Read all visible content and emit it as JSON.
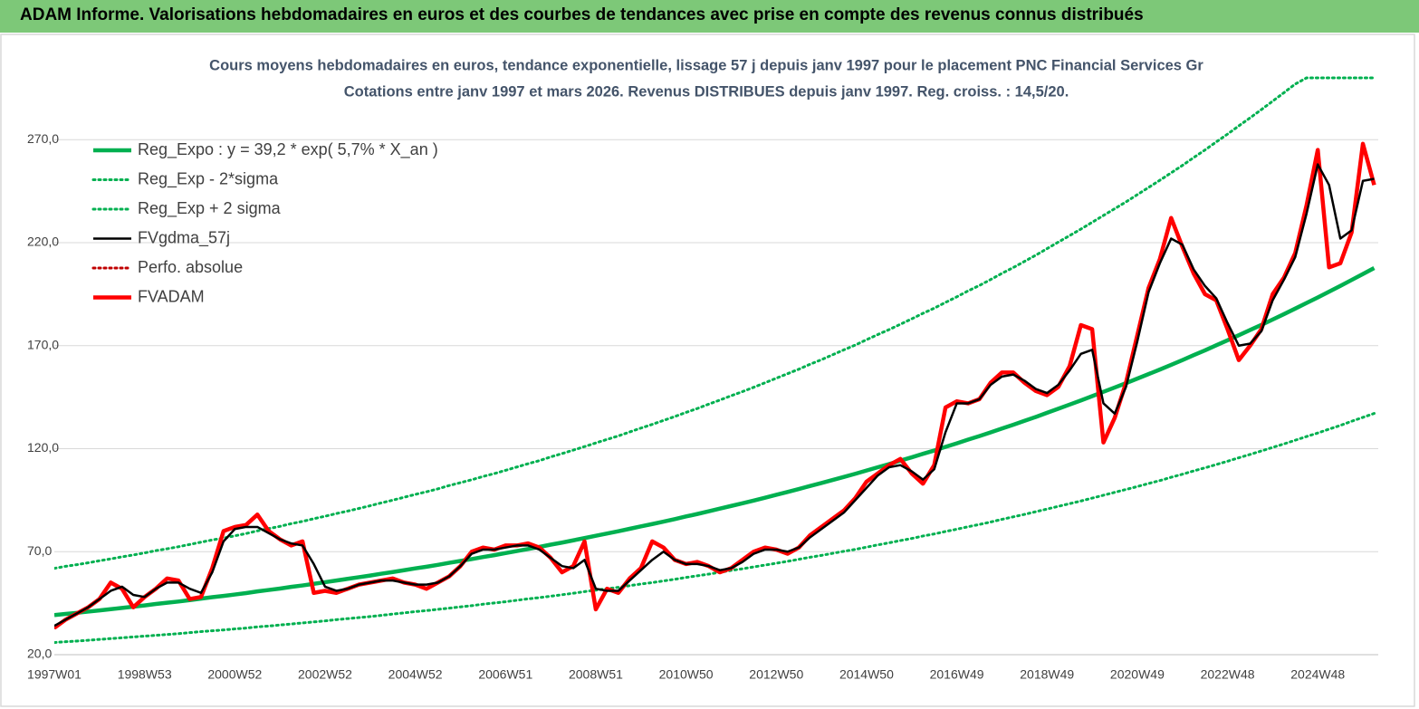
{
  "header": {
    "title": "ADAM Informe. Valorisations hebdomadaires en euros et des courbes de tendances avec prise en compte des revenus connus distribués"
  },
  "chart_data": {
    "type": "line",
    "title": "Cours moyens hebdomadaires en euros, tendance exponentielle, lissage 57 j depuis janv 1997 pour le placement PNC Financial Services Gr",
    "subtitle": "Cotations entre janv 1997 et mars 2026. Revenus DISTRIBUES depuis janv 1997. Reg. croiss. : 14,5/20.",
    "categories": [
      "1997W01",
      null,
      null,
      null,
      null,
      null,
      null,
      null,
      "1998W53",
      null,
      null,
      null,
      null,
      null,
      null,
      null,
      "2000W52",
      null,
      null,
      null,
      null,
      null,
      null,
      null,
      "2002W52",
      null,
      null,
      null,
      null,
      null,
      null,
      null,
      "2004W52",
      null,
      null,
      null,
      null,
      null,
      null,
      null,
      "2006W51",
      null,
      null,
      null,
      null,
      null,
      null,
      null,
      "2008W51",
      null,
      null,
      null,
      null,
      null,
      null,
      null,
      "2010W50",
      null,
      null,
      null,
      null,
      null,
      null,
      null,
      "2012W50",
      null,
      null,
      null,
      null,
      null,
      null,
      null,
      "2014W50",
      null,
      null,
      null,
      null,
      null,
      null,
      null,
      "2016W49",
      null,
      null,
      null,
      null,
      null,
      null,
      null,
      "2018W49",
      null,
      null,
      null,
      null,
      null,
      null,
      null,
      "2020W49",
      null,
      null,
      null,
      null,
      null,
      null,
      null,
      "2022W48",
      null,
      null,
      null,
      null,
      null,
      null,
      null,
      "2024W48",
      null,
      null,
      null,
      null,
      null
    ],
    "ylim": [
      20,
      300
    ],
    "yticks": [
      {
        "value": 20,
        "label": "20,0"
      },
      {
        "value": 70,
        "label": "70,0"
      },
      {
        "value": 120,
        "label": "120,0"
      },
      {
        "value": 170,
        "label": "170,0"
      },
      {
        "value": 220,
        "label": "220,0"
      },
      {
        "value": 270,
        "label": "270,0"
      }
    ],
    "grid": true,
    "legend": "top-left",
    "series": [
      {
        "name": "Reg_Expo : y = 39,2 * exp( 5,7% *  X_an )",
        "color": "#00b050",
        "style": "thick",
        "values": [
          39.2,
          39.8,
          40.3,
          40.9,
          41.5,
          42.1,
          42.7,
          43.3,
          43.9,
          44.6,
          45.2,
          45.8,
          46.5,
          47.2,
          47.9,
          48.5,
          49.2,
          49.9,
          50.7,
          51.4,
          52.1,
          52.9,
          53.6,
          54.4,
          55.2,
          56.0,
          56.8,
          57.6,
          58.4,
          59.3,
          60.1,
          61.0,
          61.9,
          62.7,
          63.6,
          64.6,
          65.5,
          66.4,
          67.4,
          68.3,
          69.3,
          70.3,
          71.3,
          72.3,
          73.4,
          74.4,
          75.5,
          76.6,
          77.7,
          78.8,
          79.9,
          81.1,
          82.3,
          83.4,
          84.6,
          85.8,
          87.1,
          88.3,
          89.6,
          90.9,
          92.2,
          93.5,
          94.8,
          96.2,
          97.6,
          99.0,
          100.4,
          101.9,
          103.3,
          104.8,
          106.3,
          107.8,
          109.4,
          111.0,
          112.5,
          114.2,
          115.8,
          117.5,
          119.1,
          120.9,
          122.6,
          124.4,
          126.1,
          127.9,
          129.8,
          131.6,
          133.5,
          135.4,
          137.4,
          139.4,
          141.4,
          143.4,
          145.5,
          147.6,
          149.7,
          151.8,
          154.0,
          156.2,
          158.4,
          160.7,
          163.0,
          165.4,
          167.7,
          170.2,
          172.6,
          175.1,
          177.6,
          180.1,
          182.7,
          185.3,
          188.0,
          190.7,
          193.4,
          196.2,
          199.0,
          201.9,
          204.8,
          207.7
        ]
      },
      {
        "name": "Reg_Exp - 2*sigma",
        "color": "#00b050",
        "style": "dotted",
        "values": [
          25.9,
          26.3,
          26.6,
          27.0,
          27.4,
          27.8,
          28.2,
          28.6,
          29.0,
          29.4,
          29.8,
          30.2,
          30.7,
          31.2,
          31.6,
          32.0,
          32.5,
          32.9,
          33.5,
          33.9,
          34.4,
          34.9,
          35.4,
          35.9,
          36.4,
          37.0,
          37.5,
          38.0,
          38.5,
          39.1,
          39.7,
          40.3,
          40.9,
          41.4,
          42.0,
          42.6,
          43.2,
          43.8,
          44.5,
          45.1,
          45.7,
          46.4,
          47.1,
          47.7,
          48.4,
          49.1,
          49.8,
          50.6,
          51.3,
          52.0,
          52.7,
          53.5,
          54.3,
          55.0,
          55.8,
          56.6,
          57.5,
          58.3,
          59.1,
          60.0,
          60.9,
          61.7,
          62.6,
          63.5,
          64.4,
          65.3,
          66.3,
          67.3,
          68.2,
          69.2,
          70.2,
          71.1,
          72.2,
          73.3,
          74.3,
          75.4,
          76.4,
          77.6,
          78.6,
          79.8,
          80.9,
          82.1,
          83.2,
          84.4,
          85.7,
          86.9,
          88.1,
          89.4,
          90.7,
          92.0,
          93.3,
          94.6,
          96.0,
          97.4,
          98.8,
          100.2,
          101.6,
          103.1,
          104.5,
          106.1,
          107.6,
          109.2,
          110.7,
          112.3,
          113.9,
          115.6,
          117.2,
          118.9,
          120.6,
          122.3,
          124.1,
          125.9,
          127.6,
          129.5,
          131.3,
          133.3,
          135.2,
          137.1
        ]
      },
      {
        "name": "Reg_Exp + 2 sigma",
        "color": "#00b050",
        "style": "dotted",
        "values": [
          61.9,
          62.9,
          63.7,
          64.6,
          65.6,
          66.5,
          67.5,
          68.4,
          69.4,
          70.5,
          71.4,
          72.4,
          73.5,
          74.6,
          75.7,
          76.6,
          77.7,
          78.8,
          80.1,
          81.2,
          82.3,
          83.6,
          84.7,
          86.0,
          87.2,
          88.5,
          89.7,
          91.0,
          92.3,
          93.7,
          95.0,
          96.4,
          97.8,
          99.1,
          100.5,
          102.1,
          103.5,
          104.9,
          106.5,
          107.9,
          109.5,
          111.1,
          112.7,
          114.2,
          116.0,
          117.6,
          119.3,
          121.0,
          122.8,
          124.5,
          126.2,
          128.1,
          130.0,
          131.8,
          133.7,
          135.6,
          137.6,
          139.5,
          141.6,
          143.6,
          145.7,
          147.7,
          149.8,
          152.0,
          154.2,
          156.4,
          158.6,
          161.0,
          163.2,
          165.6,
          168.0,
          170.3,
          172.9,
          175.4,
          177.8,
          180.4,
          183.0,
          185.7,
          188.2,
          191.0,
          193.7,
          196.6,
          199.2,
          202.1,
          205.1,
          207.9,
          210.9,
          213.9,
          217.1,
          220.3,
          223.4,
          226.6,
          229.9,
          233.2,
          236.5,
          239.8,
          243.3,
          246.8,
          250.3,
          253.9,
          257.5,
          261.3,
          265.0,
          268.9,
          272.7,
          276.7,
          280.6,
          284.6,
          288.7,
          292.8,
          297.0,
          300,
          300,
          300,
          300,
          300,
          300,
          300
        ]
      },
      {
        "name": "FVgdma_57j",
        "color": "#000000",
        "style": "solid",
        "values": [
          34,
          37,
          40,
          43,
          47,
          51,
          53,
          49,
          48,
          52,
          55,
          55,
          52,
          50,
          60,
          75,
          81,
          82,
          82,
          79,
          76,
          74,
          73,
          64,
          53,
          51,
          52,
          54,
          55,
          56,
          56,
          55,
          54,
          54,
          55,
          58,
          63,
          69,
          71,
          71,
          72,
          73,
          73,
          71,
          67,
          63,
          62,
          66,
          52,
          51,
          51,
          56,
          61,
          66,
          70,
          66,
          64,
          64,
          63,
          61,
          62,
          65,
          69,
          71,
          71,
          70,
          72,
          77,
          81,
          85,
          89,
          95,
          101,
          107,
          111,
          112,
          109,
          105,
          110,
          128,
          142,
          142,
          144,
          151,
          155,
          156,
          153,
          149,
          147,
          151,
          158,
          166,
          168,
          142,
          137,
          150,
          172,
          196,
          210,
          222,
          219,
          207,
          199,
          193,
          181,
          170,
          171,
          177,
          192,
          202,
          213,
          234,
          258,
          248,
          222,
          226,
          250,
          251
        ]
      },
      {
        "name": "Perfo. absolue",
        "color": "#c00000",
        "style": "dotted",
        "values": [
          33,
          37,
          40,
          43,
          47,
          55,
          52,
          43,
          48,
          52,
          57,
          56,
          47,
          48,
          62,
          80,
          82,
          83,
          88,
          80,
          76,
          73,
          75,
          50,
          51,
          50,
          52,
          54,
          55,
          56,
          57,
          55,
          54,
          52,
          55,
          58,
          63,
          70,
          72,
          71,
          73,
          73,
          74,
          72,
          67,
          60,
          63,
          75,
          42,
          52,
          50,
          57,
          62,
          75,
          72,
          66,
          64,
          65,
          63,
          60,
          62,
          66,
          70,
          72,
          71,
          69,
          72,
          78,
          82,
          86,
          90,
          96,
          104,
          108,
          112,
          115,
          108,
          103,
          112,
          140,
          143,
          142,
          144,
          152,
          157,
          157,
          152,
          148,
          146,
          150,
          160,
          180,
          178,
          123,
          135,
          152,
          175,
          198,
          212,
          232,
          218,
          205,
          195,
          192,
          178,
          163,
          170,
          178,
          195,
          203,
          215,
          238,
          265,
          208,
          210,
          225,
          268,
          248
        ]
      },
      {
        "name": "FVADAM",
        "color": "#ff0000",
        "style": "thick",
        "values": [
          33,
          37,
          40,
          43,
          47,
          55,
          52,
          43,
          48,
          52,
          57,
          56,
          47,
          48,
          62,
          80,
          82,
          83,
          88,
          80,
          76,
          73,
          75,
          50,
          51,
          50,
          52,
          54,
          55,
          56,
          57,
          55,
          54,
          52,
          55,
          58,
          63,
          70,
          72,
          71,
          73,
          73,
          74,
          72,
          67,
          60,
          63,
          75,
          42,
          52,
          50,
          57,
          62,
          75,
          72,
          66,
          64,
          65,
          63,
          60,
          62,
          66,
          70,
          72,
          71,
          69,
          72,
          78,
          82,
          86,
          90,
          96,
          104,
          108,
          112,
          115,
          108,
          103,
          112,
          140,
          143,
          142,
          144,
          152,
          157,
          157,
          152,
          148,
          146,
          150,
          160,
          180,
          178,
          123,
          135,
          152,
          175,
          198,
          212,
          232,
          218,
          205,
          195,
          192,
          178,
          163,
          170,
          178,
          195,
          203,
          215,
          238,
          265,
          208,
          210,
          225,
          268,
          248
        ]
      }
    ]
  }
}
